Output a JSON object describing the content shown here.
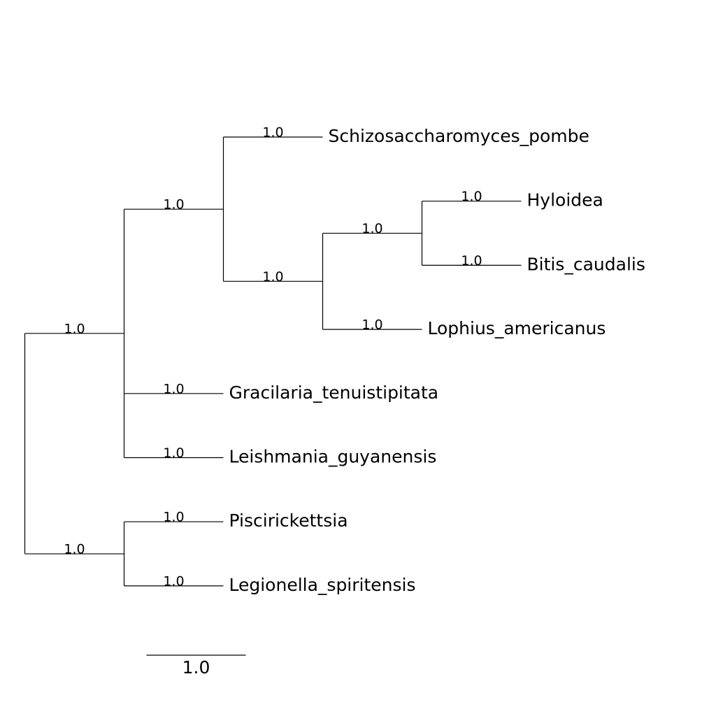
{
  "tree": {
    "nodes": [
      {
        "id": "root",
        "parent": null,
        "support": null
      },
      {
        "id": "A",
        "parent": "root",
        "support": "1.0"
      },
      {
        "id": "B",
        "parent": "A",
        "support": "1.0"
      },
      {
        "id": "leaf1",
        "parent": "B",
        "support": "1.0",
        "label": "Schizosaccharomyces_pombe"
      },
      {
        "id": "C",
        "parent": "B",
        "support": "1.0"
      },
      {
        "id": "D",
        "parent": "C",
        "support": "1.0"
      },
      {
        "id": "leaf2",
        "parent": "D",
        "support": "1.0",
        "label": "Hyloidea"
      },
      {
        "id": "leaf3",
        "parent": "D",
        "support": "1.0",
        "label": "Bitis_caudalis"
      },
      {
        "id": "leaf4",
        "parent": "C",
        "support": "1.0",
        "label": "Lophius_americanus"
      },
      {
        "id": "leaf5",
        "parent": "A",
        "support": "1.0",
        "label": "Gracilaria_tenuistipitata"
      },
      {
        "id": "leaf6",
        "parent": "A",
        "support": "1.0",
        "label": "Leishmania_guyanensis"
      },
      {
        "id": "E",
        "parent": "root",
        "support": "1.0"
      },
      {
        "id": "leaf7",
        "parent": "E",
        "support": "1.0",
        "label": "Piscirickettsia"
      },
      {
        "id": "leaf8",
        "parent": "E",
        "support": "1.0",
        "label": "Legionella_spiritensis"
      }
    ],
    "branch_length": 1.0
  },
  "scale_bar": {
    "length": 1.0,
    "label": "1.0"
  }
}
